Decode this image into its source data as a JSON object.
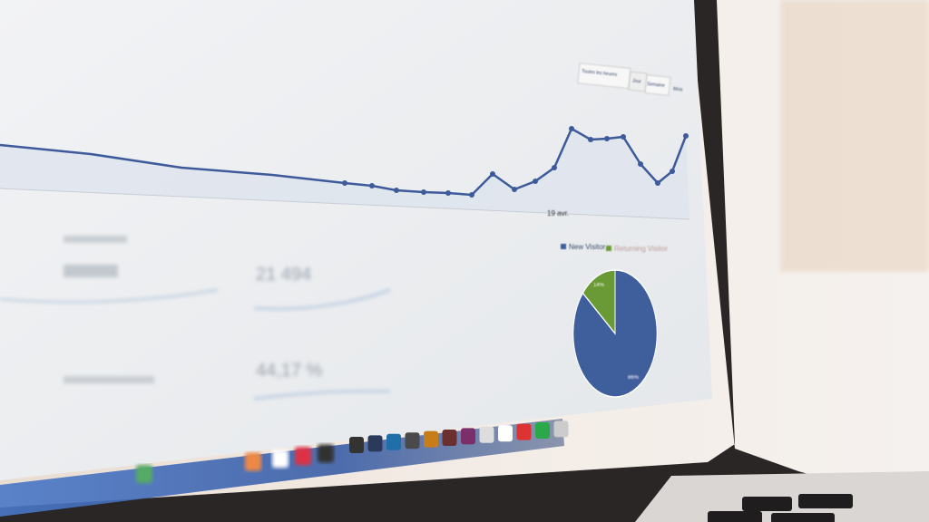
{
  "chart": {
    "date_label": "19 avr.",
    "range_buttons": [
      "Toutes les heures",
      "Jour",
      "Semaine",
      "Mois"
    ],
    "line_color": "#3d5b9a"
  },
  "pie": {
    "legend": [
      {
        "label": "New Visitor",
        "color": "#3f5e9c"
      },
      {
        "label": "Returning Visitor",
        "color": "#6a9a35"
      }
    ],
    "slices": [
      {
        "label": "86%",
        "value": 86,
        "color": "#3f5e9c"
      },
      {
        "label": "14%",
        "value": 14,
        "color": "#6a9a35"
      }
    ]
  },
  "stats": [
    {
      "value": "21 494"
    },
    {
      "value": "44,17 %"
    }
  ]
}
